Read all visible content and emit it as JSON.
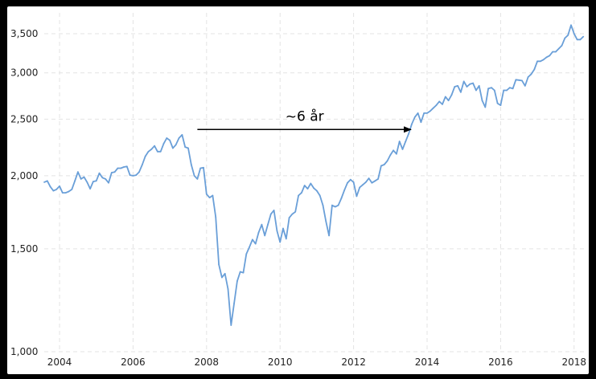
{
  "chart_data": {
    "type": "line",
    "title": "",
    "xlabel": "",
    "ylabel": "",
    "y_scale": "log",
    "xlim": [
      "2003-08",
      "2018-05"
    ],
    "ylim": [
      1000,
      3800
    ],
    "grid": true,
    "x_ticks": [
      "2004",
      "2006",
      "2008",
      "2010",
      "2012",
      "2014",
      "2016",
      "2018"
    ],
    "y_ticks": [
      "1,000",
      "1,500",
      "2,000",
      "2,500",
      "3,000",
      "3,500"
    ],
    "series": [
      {
        "name": "",
        "color": "#6a9fd8",
        "points": [
          [
            "2003-08",
            1950
          ],
          [
            "2003-09",
            1960
          ],
          [
            "2003-10",
            1915
          ],
          [
            "2003-11",
            1885
          ],
          [
            "2003-12",
            1895
          ],
          [
            "2004-01",
            1920
          ],
          [
            "2004-02",
            1870
          ],
          [
            "2004-03",
            1870
          ],
          [
            "2004-04",
            1880
          ],
          [
            "2004-05",
            1895
          ],
          [
            "2004-06",
            1960
          ],
          [
            "2004-07",
            2030
          ],
          [
            "2004-08",
            1975
          ],
          [
            "2004-09",
            1990
          ],
          [
            "2004-10",
            1950
          ],
          [
            "2004-11",
            1900
          ],
          [
            "2004-12",
            1955
          ],
          [
            "2005-01",
            1960
          ],
          [
            "2005-02",
            2020
          ],
          [
            "2005-03",
            1985
          ],
          [
            "2005-04",
            1975
          ],
          [
            "2005-05",
            1945
          ],
          [
            "2005-06",
            2025
          ],
          [
            "2005-07",
            2030
          ],
          [
            "2005-08",
            2060
          ],
          [
            "2005-09",
            2060
          ],
          [
            "2005-10",
            2070
          ],
          [
            "2005-11",
            2075
          ],
          [
            "2005-12",
            2005
          ],
          [
            "2006-01",
            2000
          ],
          [
            "2006-02",
            2005
          ],
          [
            "2006-03",
            2030
          ],
          [
            "2006-04",
            2090
          ],
          [
            "2006-05",
            2160
          ],
          [
            "2006-06",
            2200
          ],
          [
            "2006-07",
            2220
          ],
          [
            "2006-08",
            2250
          ],
          [
            "2006-09",
            2200
          ],
          [
            "2006-10",
            2200
          ],
          [
            "2006-11",
            2270
          ],
          [
            "2006-12",
            2320
          ],
          [
            "2007-01",
            2300
          ],
          [
            "2007-02",
            2230
          ],
          [
            "2007-03",
            2260
          ],
          [
            "2007-04",
            2320
          ],
          [
            "2007-05",
            2350
          ],
          [
            "2007-06",
            2240
          ],
          [
            "2007-07",
            2230
          ],
          [
            "2007-08",
            2090
          ],
          [
            "2007-09",
            2000
          ],
          [
            "2007-10",
            1975
          ],
          [
            "2007-11",
            2060
          ],
          [
            "2007-12",
            2065
          ],
          [
            "2008-01",
            1860
          ],
          [
            "2008-02",
            1835
          ],
          [
            "2008-03",
            1850
          ],
          [
            "2008-04",
            1700
          ],
          [
            "2008-05",
            1410
          ],
          [
            "2008-06",
            1340
          ],
          [
            "2008-07",
            1360
          ],
          [
            "2008-08",
            1280
          ],
          [
            "2008-09",
            1110
          ],
          [
            "2008-10",
            1210
          ],
          [
            "2008-11",
            1320
          ],
          [
            "2008-12",
            1370
          ],
          [
            "2009-01",
            1365
          ],
          [
            "2009-02",
            1470
          ],
          [
            "2009-03",
            1510
          ],
          [
            "2009-04",
            1555
          ],
          [
            "2009-05",
            1530
          ],
          [
            "2009-06",
            1600
          ],
          [
            "2009-07",
            1650
          ],
          [
            "2009-08",
            1580
          ],
          [
            "2009-09",
            1650
          ],
          [
            "2009-10",
            1720
          ],
          [
            "2009-11",
            1745
          ],
          [
            "2009-12",
            1610
          ],
          [
            "2010-01",
            1540
          ],
          [
            "2010-02",
            1625
          ],
          [
            "2010-03",
            1560
          ],
          [
            "2010-04",
            1695
          ],
          [
            "2010-05",
            1720
          ],
          [
            "2010-06",
            1735
          ],
          [
            "2010-07",
            1850
          ],
          [
            "2010-08",
            1870
          ],
          [
            "2010-09",
            1925
          ],
          [
            "2010-10",
            1900
          ],
          [
            "2010-11",
            1940
          ],
          [
            "2010-12",
            1905
          ],
          [
            "2011-01",
            1885
          ],
          [
            "2011-02",
            1850
          ],
          [
            "2011-03",
            1780
          ],
          [
            "2011-04",
            1670
          ],
          [
            "2011-05",
            1580
          ],
          [
            "2011-06",
            1780
          ],
          [
            "2011-07",
            1770
          ],
          [
            "2011-08",
            1780
          ],
          [
            "2011-09",
            1830
          ],
          [
            "2011-10",
            1890
          ],
          [
            "2011-11",
            1945
          ],
          [
            "2011-12",
            1970
          ],
          [
            "2012-01",
            1950
          ],
          [
            "2012-02",
            1845
          ],
          [
            "2012-03",
            1910
          ],
          [
            "2012-04",
            1930
          ],
          [
            "2012-05",
            1950
          ],
          [
            "2012-06",
            1980
          ],
          [
            "2012-07",
            1945
          ],
          [
            "2012-08",
            1960
          ],
          [
            "2012-09",
            1975
          ],
          [
            "2012-10",
            2080
          ],
          [
            "2012-11",
            2090
          ],
          [
            "2012-12",
            2120
          ],
          [
            "2013-01",
            2170
          ],
          [
            "2013-02",
            2210
          ],
          [
            "2013-03",
            2180
          ],
          [
            "2013-04",
            2290
          ],
          [
            "2013-05",
            2220
          ],
          [
            "2013-06",
            2290
          ],
          [
            "2013-07",
            2360
          ],
          [
            "2013-08",
            2450
          ],
          [
            "2013-09",
            2520
          ],
          [
            "2013-10",
            2560
          ],
          [
            "2013-11",
            2470
          ],
          [
            "2013-12",
            2560
          ],
          [
            "2014-01",
            2560
          ],
          [
            "2014-02",
            2580
          ],
          [
            "2014-03",
            2610
          ],
          [
            "2014-04",
            2640
          ],
          [
            "2014-05",
            2680
          ],
          [
            "2014-06",
            2650
          ],
          [
            "2014-07",
            2730
          ],
          [
            "2014-08",
            2690
          ],
          [
            "2014-09",
            2750
          ],
          [
            "2014-10",
            2840
          ],
          [
            "2014-11",
            2850
          ],
          [
            "2014-12",
            2780
          ],
          [
            "2015-01",
            2900
          ],
          [
            "2015-02",
            2840
          ],
          [
            "2015-03",
            2870
          ],
          [
            "2015-04",
            2880
          ],
          [
            "2015-05",
            2800
          ],
          [
            "2015-06",
            2850
          ],
          [
            "2015-07",
            2690
          ],
          [
            "2015-08",
            2620
          ],
          [
            "2015-09",
            2820
          ],
          [
            "2015-10",
            2830
          ],
          [
            "2015-11",
            2800
          ],
          [
            "2015-12",
            2660
          ],
          [
            "2016-01",
            2640
          ],
          [
            "2016-02",
            2800
          ],
          [
            "2016-03",
            2800
          ],
          [
            "2016-04",
            2830
          ],
          [
            "2016-05",
            2820
          ],
          [
            "2016-06",
            2920
          ],
          [
            "2016-07",
            2915
          ],
          [
            "2016-08",
            2910
          ],
          [
            "2016-09",
            2850
          ],
          [
            "2016-10",
            2950
          ],
          [
            "2016-11",
            2985
          ],
          [
            "2016-12",
            3040
          ],
          [
            "2017-01",
            3140
          ],
          [
            "2017-02",
            3140
          ],
          [
            "2017-03",
            3160
          ],
          [
            "2017-04",
            3190
          ],
          [
            "2017-05",
            3210
          ],
          [
            "2017-06",
            3260
          ],
          [
            "2017-07",
            3260
          ],
          [
            "2017-08",
            3300
          ],
          [
            "2017-09",
            3340
          ],
          [
            "2017-10",
            3440
          ],
          [
            "2017-11",
            3480
          ],
          [
            "2017-12",
            3620
          ],
          [
            "2018-01",
            3500
          ],
          [
            "2018-02",
            3420
          ],
          [
            "2018-03",
            3420
          ],
          [
            "2018-04",
            3460
          ]
        ]
      }
    ],
    "annotations": [
      {
        "text": "~6 år",
        "type": "arrow",
        "from": "2007-10",
        "to": "2013-08",
        "y": 2400
      }
    ]
  }
}
